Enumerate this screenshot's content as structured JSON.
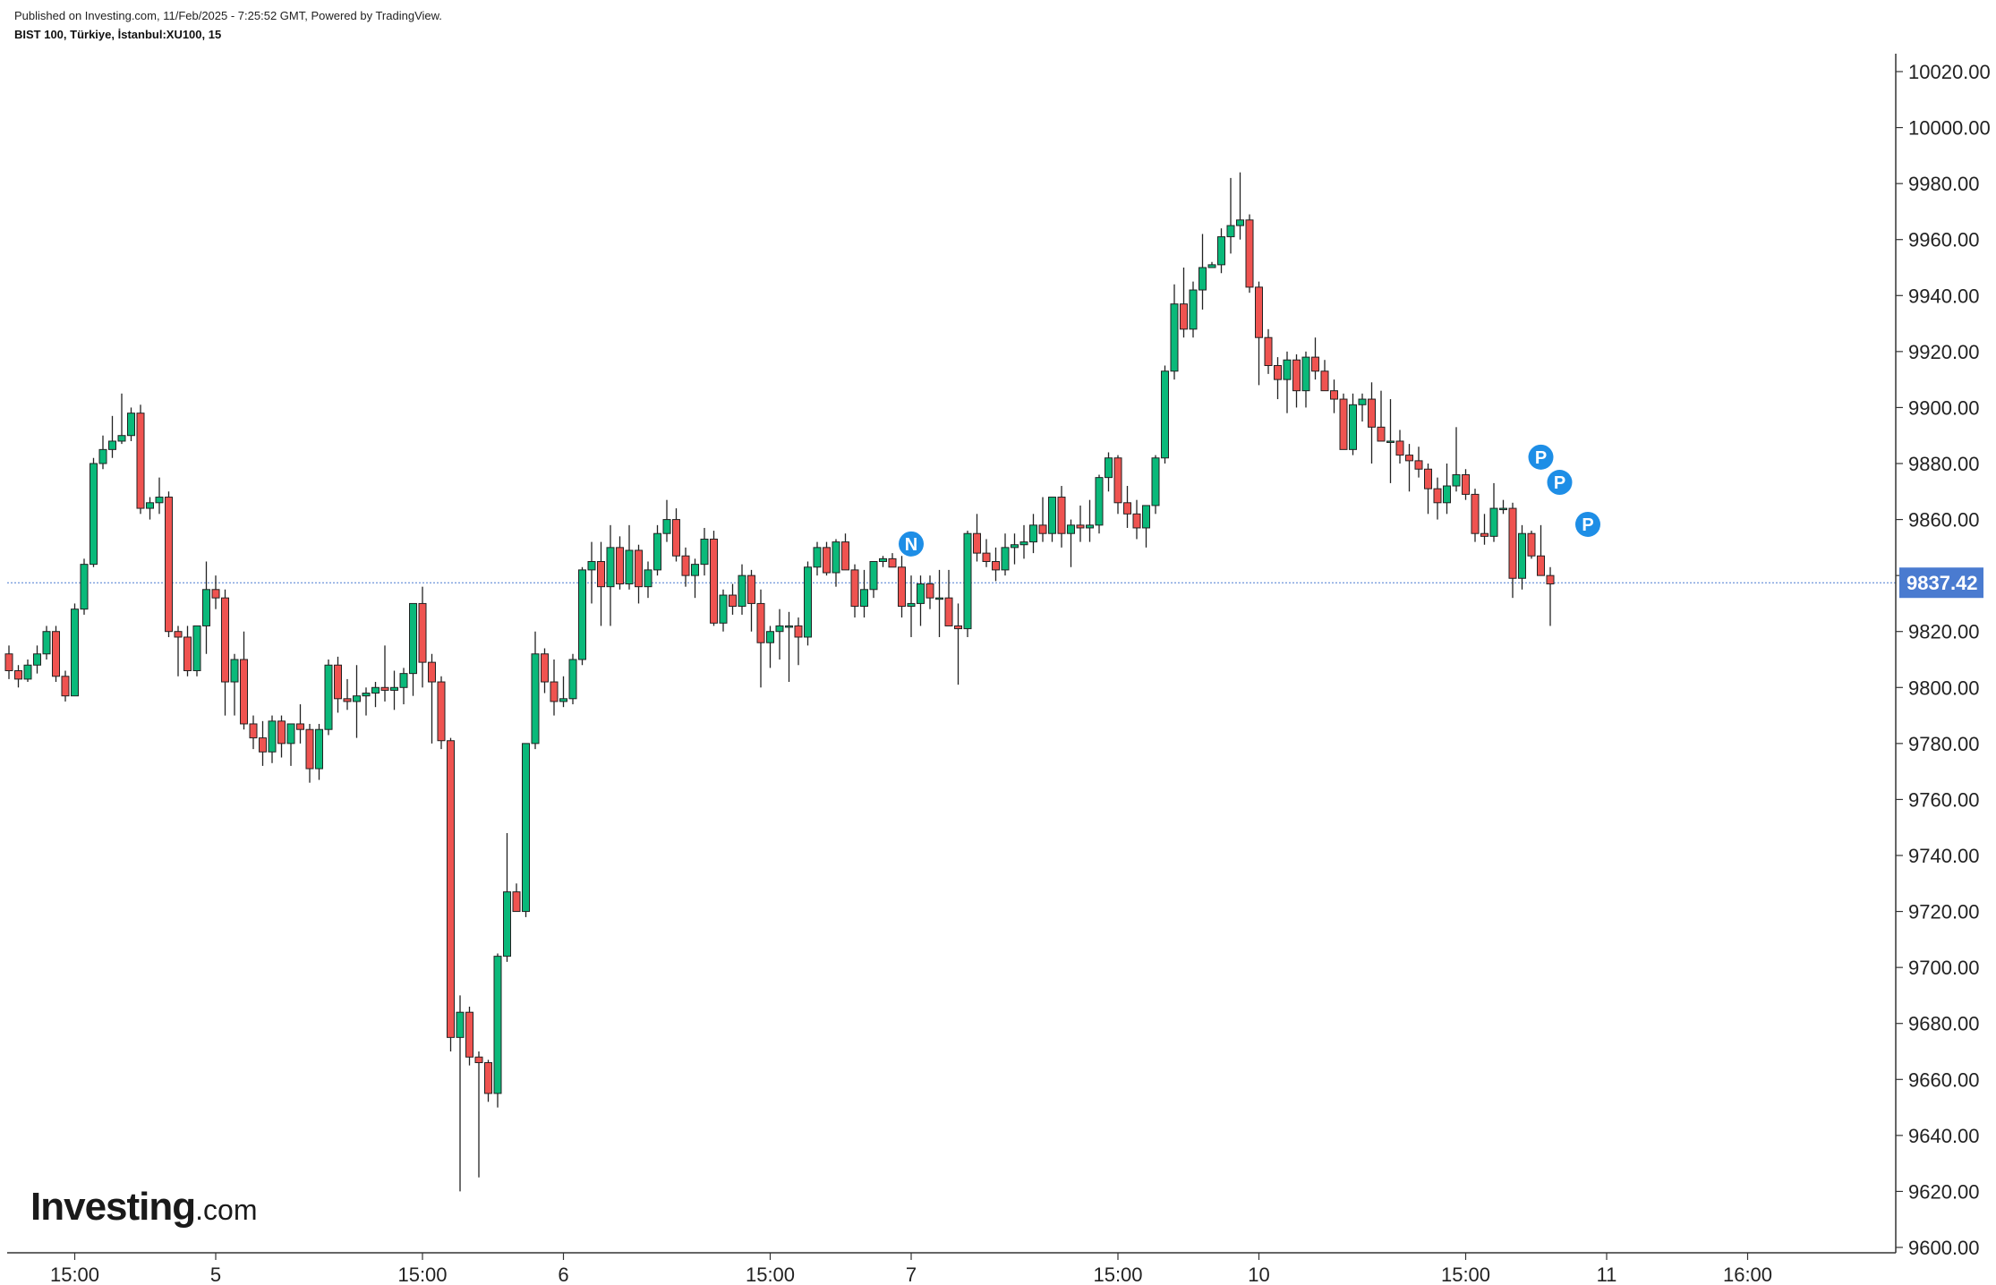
{
  "header": {
    "publish_line": "Published on Investing.com, 11/Feb/2025 - 7:25:52 GMT, Powered by TradingView.",
    "symbol_line": "BIST 100, Türkiye, İstanbul:XU100, 15"
  },
  "logo": {
    "brand": "Investing",
    "domain": ".com"
  },
  "colors": {
    "up": "#0ab97a",
    "down": "#ef5350",
    "outline": "#222222",
    "price_tag": "#4a7bd0",
    "event_marker": "#1e8ee6"
  },
  "chart_data": {
    "type": "candlestick",
    "ylim": [
      9600,
      10020
    ],
    "y_ticks": [
      10020,
      10000,
      9980,
      9960,
      9940,
      9920,
      9900,
      9880,
      9860,
      9840,
      9820,
      9800,
      9780,
      9760,
      9740,
      9720,
      9700,
      9680,
      9660,
      9640,
      9620,
      9600
    ],
    "y_tick_labels": [
      "10020.00",
      "10000.00",
      "9980.00",
      "9960.00",
      "9940.00",
      "9920.00",
      "9900.00",
      "9880.00",
      "9860.00",
      "9840.00",
      "9820.00",
      "9800.00",
      "9780.00",
      "9760.00",
      "9740.00",
      "9720.00",
      "9700.00",
      "9680.00",
      "9660.00",
      "9640.00",
      "9620.00",
      "9600.00"
    ],
    "x_ticks": [
      {
        "index": 7,
        "label": "15:00"
      },
      {
        "index": 22,
        "label": "5"
      },
      {
        "index": 44,
        "label": "15:00"
      },
      {
        "index": 59,
        "label": "6"
      },
      {
        "index": 81,
        "label": "15:00"
      },
      {
        "index": 96,
        "label": "7"
      },
      {
        "index": 118,
        "label": "15:00"
      },
      {
        "index": 133,
        "label": "10"
      },
      {
        "index": 155,
        "label": "15:00"
      },
      {
        "index": 170,
        "label": "11"
      },
      {
        "index": 185,
        "label": "16:00"
      }
    ],
    "last_price": 9837.42,
    "last_price_label": "9837.42",
    "events": [
      {
        "index": 96,
        "price": 9850,
        "label": "N"
      },
      {
        "index": 163,
        "price": 9881,
        "label": "P"
      },
      {
        "index": 165,
        "price": 9872,
        "label": "P"
      },
      {
        "index": 168,
        "price": 9857,
        "label": "P"
      }
    ],
    "candles": [
      [
        9812,
        9815,
        9803,
        9806
      ],
      [
        9806,
        9808,
        9800,
        9803
      ],
      [
        9803,
        9810,
        9802,
        9808
      ],
      [
        9808,
        9815,
        9805,
        9812
      ],
      [
        9812,
        9822,
        9810,
        9820
      ],
      [
        9820,
        9822,
        9802,
        9804
      ],
      [
        9804,
        9806,
        9795,
        9797
      ],
      [
        9797,
        9830,
        9797,
        9828
      ],
      [
        9828,
        9846,
        9826,
        9844
      ],
      [
        9844,
        9882,
        9843,
        9880
      ],
      [
        9880,
        9890,
        9878,
        9885
      ],
      [
        9885,
        9897,
        9882,
        9888
      ],
      [
        9888,
        9905,
        9887,
        9890
      ],
      [
        9890,
        9900,
        9888,
        9898
      ],
      [
        9898,
        9901,
        9862,
        9864
      ],
      [
        9864,
        9868,
        9860,
        9866
      ],
      [
        9866,
        9875,
        9862,
        9868
      ],
      [
        9868,
        9870,
        9818,
        9820
      ],
      [
        9820,
        9822,
        9804,
        9818
      ],
      [
        9818,
        9822,
        9804,
        9806
      ],
      [
        9806,
        9822,
        9804,
        9822
      ],
      [
        9822,
        9845,
        9812,
        9835
      ],
      [
        9835,
        9840,
        9828,
        9832
      ],
      [
        9832,
        9835,
        9790,
        9802
      ],
      [
        9802,
        9812,
        9790,
        9810
      ],
      [
        9810,
        9820,
        9785,
        9787
      ],
      [
        9787,
        9790,
        9778,
        9782
      ],
      [
        9782,
        9788,
        9772,
        9777
      ],
      [
        9777,
        9790,
        9773,
        9788
      ],
      [
        9788,
        9790,
        9775,
        9780
      ],
      [
        9780,
        9787,
        9772,
        9787
      ],
      [
        9787,
        9794,
        9780,
        9785
      ],
      [
        9785,
        9787,
        9766,
        9771
      ],
      [
        9771,
        9787,
        9767,
        9785
      ],
      [
        9785,
        9810,
        9783,
        9808
      ],
      [
        9808,
        9811,
        9791,
        9796
      ],
      [
        9796,
        9803,
        9792,
        9795
      ],
      [
        9795,
        9808,
        9782,
        9797
      ],
      [
        9797,
        9800,
        9790,
        9798
      ],
      [
        9798,
        9802,
        9793,
        9800
      ],
      [
        9800,
        9815,
        9795,
        9799
      ],
      [
        9799,
        9806,
        9792,
        9800
      ],
      [
        9800,
        9807,
        9794,
        9805
      ],
      [
        9805,
        9830,
        9797,
        9830
      ],
      [
        9830,
        9836,
        9800,
        9809
      ],
      [
        9809,
        9812,
        9780,
        9802
      ],
      [
        9802,
        9804,
        9778,
        9781
      ],
      [
        9781,
        9782,
        9670,
        9675
      ],
      [
        9675,
        9690,
        9620,
        9684
      ],
      [
        9684,
        9686,
        9665,
        9668
      ],
      [
        9668,
        9670,
        9625,
        9666
      ],
      [
        9666,
        9667,
        9652,
        9655
      ],
      [
        9655,
        9705,
        9650,
        9704
      ],
      [
        9704,
        9748,
        9702,
        9727
      ],
      [
        9727,
        9730,
        9720,
        9720
      ],
      [
        9720,
        9780,
        9718,
        9780
      ],
      [
        9780,
        9820,
        9778,
        9812
      ],
      [
        9812,
        9814,
        9798,
        9802
      ],
      [
        9802,
        9810,
        9790,
        9795
      ],
      [
        9795,
        9804,
        9793,
        9796
      ],
      [
        9796,
        9812,
        9794,
        9810
      ],
      [
        9810,
        9843,
        9808,
        9842
      ],
      [
        9842,
        9852,
        9830,
        9845
      ],
      [
        9845,
        9852,
        9822,
        9836
      ],
      [
        9836,
        9858,
        9822,
        9850
      ],
      [
        9850,
        9854,
        9835,
        9837
      ],
      [
        9837,
        9858,
        9835,
        9849
      ],
      [
        9849,
        9851,
        9830,
        9836
      ],
      [
        9836,
        9845,
        9832,
        9842
      ],
      [
        9842,
        9858,
        9840,
        9855
      ],
      [
        9855,
        9867,
        9852,
        9860
      ],
      [
        9860,
        9864,
        9845,
        9847
      ],
      [
        9847,
        9850,
        9836,
        9840
      ],
      [
        9840,
        9846,
        9832,
        9844
      ],
      [
        9844,
        9857,
        9840,
        9853
      ],
      [
        9853,
        9856,
        9822,
        9823
      ],
      [
        9823,
        9835,
        9820,
        9833
      ],
      [
        9833,
        9837,
        9826,
        9829
      ],
      [
        9829,
        9844,
        9826,
        9840
      ],
      [
        9840,
        9842,
        9820,
        9830
      ],
      [
        9830,
        9835,
        9800,
        9816
      ],
      [
        9816,
        9822,
        9807,
        9820
      ],
      [
        9820,
        9828,
        9810,
        9822
      ],
      [
        9822,
        9827,
        9802,
        9822
      ],
      [
        9822,
        9825,
        9808,
        9818
      ],
      [
        9818,
        9845,
        9815,
        9843
      ],
      [
        9843,
        9852,
        9840,
        9850
      ],
      [
        9850,
        9852,
        9840,
        9841
      ],
      [
        9841,
        9853,
        9836,
        9852
      ],
      [
        9852,
        9855,
        9842,
        9842
      ],
      [
        9842,
        9844,
        9825,
        9829
      ],
      [
        9829,
        9842,
        9825,
        9835
      ],
      [
        9835,
        9845,
        9832,
        9845
      ],
      [
        9845,
        9847,
        9843,
        9846
      ],
      [
        9846,
        9848,
        9843,
        9843
      ],
      [
        9843,
        9847,
        9825,
        9829
      ],
      [
        9829,
        9840,
        9818,
        9830
      ],
      [
        9830,
        9840,
        9822,
        9837
      ],
      [
        9837,
        9840,
        9828,
        9832
      ],
      [
        9832,
        9842,
        9818,
        9832
      ],
      [
        9832,
        9842,
        9822,
        9822
      ],
      [
        9822,
        9830,
        9801,
        9821
      ],
      [
        9821,
        9856,
        9818,
        9855
      ],
      [
        9855,
        9862,
        9845,
        9848
      ],
      [
        9848,
        9853,
        9843,
        9845
      ],
      [
        9845,
        9850,
        9838,
        9842
      ],
      [
        9842,
        9855,
        9840,
        9850
      ],
      [
        9850,
        9855,
        9844,
        9851
      ],
      [
        9851,
        9858,
        9846,
        9852
      ],
      [
        9852,
        9862,
        9848,
        9858
      ],
      [
        9858,
        9868,
        9852,
        9855
      ],
      [
        9855,
        9865,
        9852,
        9868
      ],
      [
        9868,
        9872,
        9850,
        9855
      ],
      [
        9855,
        9860,
        9843,
        9858
      ],
      [
        9858,
        9865,
        9852,
        9857
      ],
      [
        9857,
        9867,
        9852,
        9858
      ],
      [
        9858,
        9876,
        9855,
        9875
      ],
      [
        9875,
        9884,
        9870,
        9882
      ],
      [
        9882,
        9883,
        9862,
        9866
      ],
      [
        9866,
        9872,
        9857,
        9862
      ],
      [
        9862,
        9867,
        9853,
        9857
      ],
      [
        9857,
        9863,
        9850,
        9865
      ],
      [
        9865,
        9883,
        9862,
        9882
      ],
      [
        9882,
        9915,
        9880,
        9913
      ],
      [
        9913,
        9944,
        9910,
        9937
      ],
      [
        9937,
        9950,
        9925,
        9928
      ],
      [
        9928,
        9945,
        9925,
        9942
      ],
      [
        9942,
        9962,
        9935,
        9950
      ],
      [
        9950,
        9952,
        9950,
        9951
      ],
      [
        9951,
        9964,
        9948,
        9961
      ],
      [
        9961,
        9982,
        9955,
        9965
      ],
      [
        9965,
        9984,
        9960,
        9967
      ],
      [
        9967,
        9969,
        9941,
        9943
      ],
      [
        9943,
        9945,
        9908,
        9925
      ],
      [
        9925,
        9928,
        9912,
        9915
      ],
      [
        9915,
        9918,
        9903,
        9910
      ],
      [
        9910,
        9920,
        9898,
        9917
      ],
      [
        9917,
        9919,
        9900,
        9906
      ],
      [
        9906,
        9920,
        9900,
        9918
      ],
      [
        9918,
        9925,
        9910,
        9913
      ],
      [
        9913,
        9917,
        9906,
        9906
      ],
      [
        9906,
        9910,
        9898,
        9903
      ],
      [
        9903,
        9905,
        9885,
        9885
      ],
      [
        9885,
        9905,
        9883,
        9901
      ],
      [
        9901,
        9905,
        9895,
        9903
      ],
      [
        9903,
        9909,
        9880,
        9893
      ],
      [
        9893,
        9906,
        9890,
        9888
      ],
      [
        9888,
        9903,
        9873,
        9888
      ],
      [
        9888,
        9892,
        9880,
        9883
      ],
      [
        9883,
        9887,
        9870,
        9881
      ],
      [
        9881,
        9886,
        9875,
        9878
      ],
      [
        9878,
        9880,
        9862,
        9871
      ],
      [
        9871,
        9875,
        9860,
        9866
      ],
      [
        9866,
        9880,
        9862,
        9872
      ],
      [
        9872,
        9893,
        9870,
        9876
      ],
      [
        9876,
        9878,
        9867,
        9869
      ],
      [
        9869,
        9871,
        9852,
        9855
      ],
      [
        9855,
        9862,
        9851,
        9854
      ],
      [
        9854,
        9873,
        9852,
        9864
      ],
      [
        9864,
        9867,
        9862,
        9864
      ],
      [
        9864,
        9866,
        9832,
        9839
      ],
      [
        9839,
        9858,
        9835,
        9855
      ],
      [
        9855,
        9856,
        9846,
        9847
      ],
      [
        9847,
        9858,
        9840,
        9840
      ],
      [
        9840,
        9843,
        9822,
        9837
      ]
    ]
  }
}
